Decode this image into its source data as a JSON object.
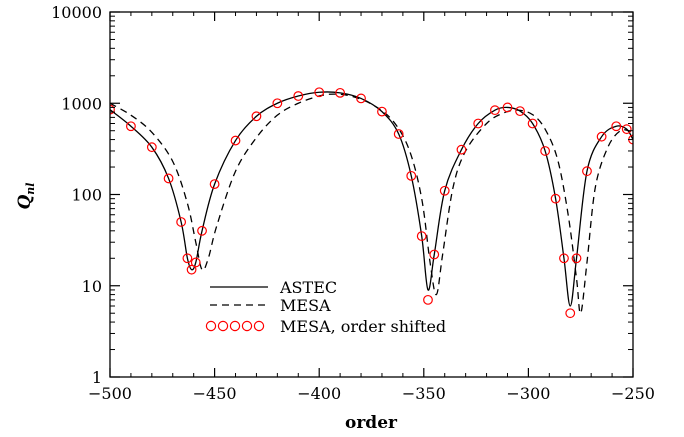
{
  "chart_data": {
    "type": "line",
    "title": "",
    "xlabel": "order",
    "ylabel": "Q",
    "ylabel_sub": "nl",
    "xlim": [
      -500,
      -250
    ],
    "ylim": [
      1,
      10000
    ],
    "y_scale": "log",
    "x_ticks": [
      -500,
      -450,
      -400,
      -350,
      -300,
      -250
    ],
    "x_tick_labels": [
      "−500",
      "−450",
      "−400",
      "−350",
      "−300",
      "−250"
    ],
    "y_ticks": [
      1,
      10,
      100,
      1000,
      10000
    ],
    "y_tick_labels": [
      "1",
      "10",
      "100",
      "1000",
      "10000"
    ],
    "grid": false,
    "legend_position": "bottom-left",
    "series": [
      {
        "name": "ASTEC",
        "style": "solid",
        "color": "#000000",
        "points": [
          [
            -500,
            850
          ],
          [
            -490,
            560
          ],
          [
            -480,
            330
          ],
          [
            -472,
            150
          ],
          [
            -466,
            50
          ],
          [
            -463,
            20
          ],
          [
            -461,
            15
          ],
          [
            -459,
            18
          ],
          [
            -456,
            40
          ],
          [
            -450,
            130
          ],
          [
            -440,
            390
          ],
          [
            -430,
            720
          ],
          [
            -420,
            1000
          ],
          [
            -410,
            1200
          ],
          [
            -400,
            1320
          ],
          [
            -390,
            1300
          ],
          [
            -380,
            1130
          ],
          [
            -370,
            810
          ],
          [
            -362,
            460
          ],
          [
            -356,
            160
          ],
          [
            -351,
            35
          ],
          [
            -348,
            9
          ],
          [
            -345,
            22
          ],
          [
            -340,
            110
          ],
          [
            -332,
            310
          ],
          [
            -324,
            600
          ],
          [
            -316,
            840
          ],
          [
            -310,
            900
          ],
          [
            -304,
            820
          ],
          [
            -298,
            600
          ],
          [
            -292,
            300
          ],
          [
            -287,
            90
          ],
          [
            -283,
            20
          ],
          [
            -280,
            6
          ],
          [
            -277,
            20
          ],
          [
            -272,
            180
          ],
          [
            -265,
            430
          ],
          [
            -258,
            560
          ],
          [
            -253,
            520
          ],
          [
            -250,
            400
          ]
        ]
      },
      {
        "name": "MESA",
        "style": "dashed",
        "color": "#000000",
        "points": [
          [
            -500,
            1000
          ],
          [
            -490,
            740
          ],
          [
            -480,
            480
          ],
          [
            -470,
            230
          ],
          [
            -463,
            80
          ],
          [
            -459,
            30
          ],
          [
            -456,
            15
          ],
          [
            -453,
            20
          ],
          [
            -449,
            45
          ],
          [
            -440,
            180
          ],
          [
            -430,
            420
          ],
          [
            -420,
            740
          ],
          [
            -410,
            1000
          ],
          [
            -400,
            1200
          ],
          [
            -393,
            1260
          ],
          [
            -385,
            1200
          ],
          [
            -375,
            980
          ],
          [
            -365,
            650
          ],
          [
            -357,
            310
          ],
          [
            -351,
            90
          ],
          [
            -347,
            18
          ],
          [
            -344,
            8
          ],
          [
            -341,
            22
          ],
          [
            -336,
            120
          ],
          [
            -330,
            300
          ],
          [
            -320,
            600
          ],
          [
            -312,
            780
          ],
          [
            -305,
            840
          ],
          [
            -298,
            750
          ],
          [
            -292,
            520
          ],
          [
            -286,
            240
          ],
          [
            -281,
            60
          ],
          [
            -277,
            12
          ],
          [
            -275,
            5
          ],
          [
            -272,
            18
          ],
          [
            -268,
            120
          ],
          [
            -262,
            330
          ],
          [
            -256,
            500
          ],
          [
            -251,
            490
          ],
          [
            -250,
            470
          ]
        ]
      },
      {
        "name": "MESA, order shifted",
        "style": "markers",
        "marker": "open-circle",
        "color": "#ff0000",
        "points": [
          [
            -500,
            850
          ],
          [
            -490,
            560
          ],
          [
            -480,
            330
          ],
          [
            -472,
            150
          ],
          [
            -466,
            50
          ],
          [
            -463,
            20
          ],
          [
            -461,
            15
          ],
          [
            -459,
            18
          ],
          [
            -456,
            40
          ],
          [
            -450,
            130
          ],
          [
            -440,
            390
          ],
          [
            -430,
            720
          ],
          [
            -420,
            1000
          ],
          [
            -410,
            1200
          ],
          [
            -400,
            1320
          ],
          [
            -390,
            1300
          ],
          [
            -380,
            1130
          ],
          [
            -370,
            810
          ],
          [
            -362,
            460
          ],
          [
            -356,
            160
          ],
          [
            -351,
            35
          ],
          [
            -348,
            7
          ],
          [
            -345,
            22
          ],
          [
            -340,
            110
          ],
          [
            -332,
            310
          ],
          [
            -324,
            600
          ],
          [
            -316,
            840
          ],
          [
            -310,
            900
          ],
          [
            -304,
            820
          ],
          [
            -298,
            600
          ],
          [
            -292,
            300
          ],
          [
            -287,
            90
          ],
          [
            -283,
            20
          ],
          [
            -280,
            5
          ],
          [
            -277,
            20
          ],
          [
            -272,
            180
          ],
          [
            -265,
            430
          ],
          [
            -258,
            560
          ],
          [
            -253,
            520
          ],
          [
            -250,
            400
          ]
        ]
      }
    ]
  }
}
